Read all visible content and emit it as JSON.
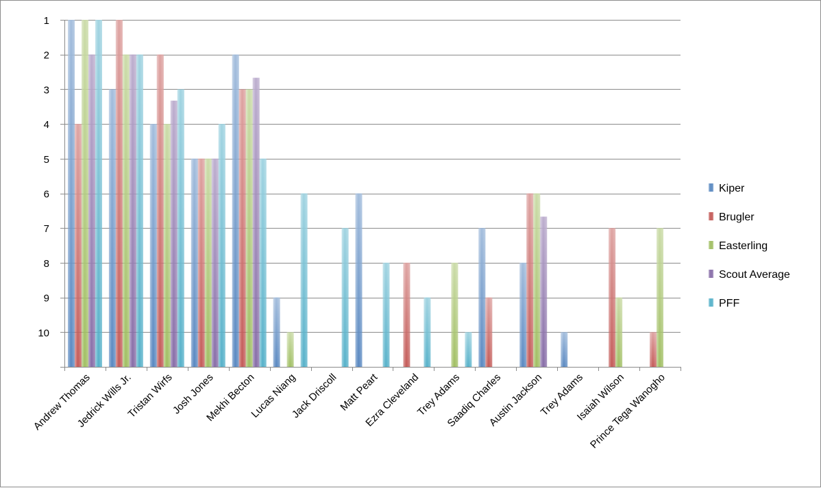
{
  "chart_data": {
    "type": "bar",
    "title": "",
    "xlabel": "",
    "ylabel": "",
    "y_axis": {
      "reversed": true,
      "min": 1,
      "max": 11,
      "ticks": [
        1,
        2,
        3,
        4,
        5,
        6,
        7,
        8,
        9,
        10
      ]
    },
    "grid": true,
    "legend_position": "right",
    "categories": [
      "Andrew Thomas",
      "Jedrick Wills Jr.",
      "Tristan Wirfs",
      "Josh Jones",
      "Mekhi Becton",
      "Lucas Niang",
      "Jack Driscoll",
      "Matt Peart",
      "Ezra Cleveland",
      "Trey Adams",
      "Saadiq Charles",
      "Austin Jackson",
      "Trey Adams",
      "Isaiah Wilson",
      "Prince Tega Wanogho"
    ],
    "series": [
      {
        "name": "Kiper",
        "color": "#4f81bd",
        "values": [
          1,
          3,
          4,
          5,
          2,
          9,
          null,
          6,
          null,
          null,
          7,
          8,
          10,
          null,
          null
        ]
      },
      {
        "name": "Brugler",
        "color": "#c0504d",
        "values": [
          4,
          1,
          2,
          5,
          3,
          null,
          null,
          null,
          8,
          null,
          9,
          6,
          null,
          7,
          10
        ]
      },
      {
        "name": "Easterling",
        "color": "#9bbb59",
        "values": [
          1,
          2,
          4,
          5,
          3,
          10,
          null,
          null,
          null,
          8,
          null,
          6,
          null,
          9,
          7
        ]
      },
      {
        "name": "Scout Average",
        "color": "#8064a2",
        "values": [
          2,
          2,
          3.33,
          5,
          2.67,
          null,
          null,
          null,
          null,
          null,
          null,
          6.67,
          null,
          null,
          null
        ]
      },
      {
        "name": "PFF",
        "color": "#4bacc6",
        "values": [
          1,
          2,
          3,
          4,
          5,
          6,
          7,
          8,
          9,
          10,
          null,
          null,
          null,
          null,
          null
        ]
      }
    ]
  }
}
